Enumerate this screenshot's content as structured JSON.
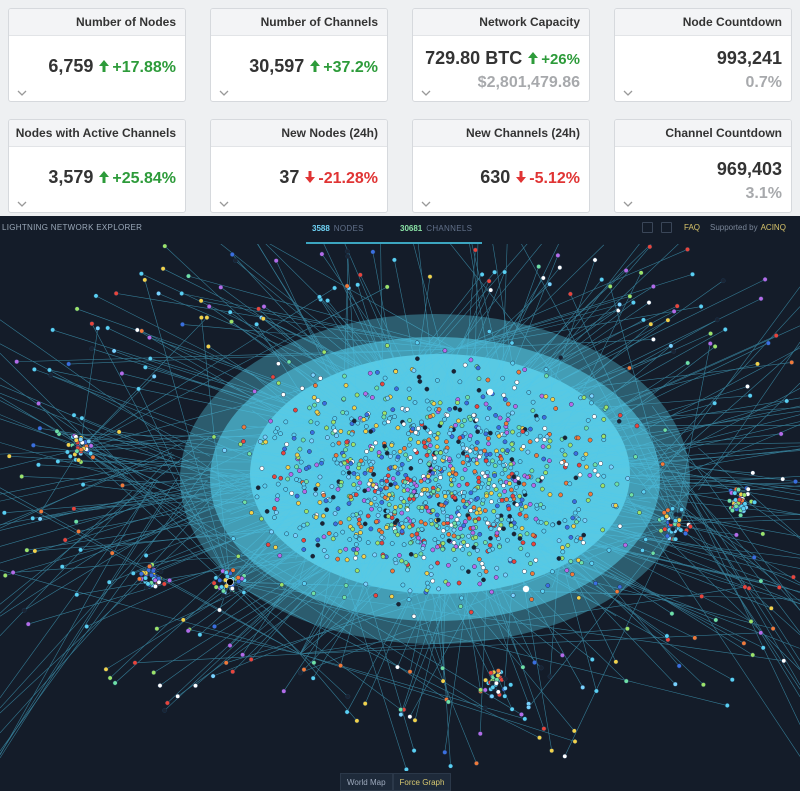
{
  "stat_cards": [
    {
      "title": "Number of Nodes",
      "value": "6,759",
      "change": "+17.88%",
      "trend": "up"
    },
    {
      "title": "Number of Channels",
      "value": "30,597",
      "change": "+37.2%",
      "trend": "up"
    },
    {
      "title": "Network Capacity",
      "value": "729.80 BTC",
      "change": "+26%",
      "trend": "up",
      "sub": "$2,801,479.86"
    },
    {
      "title": "Node Countdown",
      "value": "993,241",
      "sub": "0.7%"
    },
    {
      "title": "Nodes with Active Channels",
      "value": "3,579",
      "change": "+25.84%",
      "trend": "up"
    },
    {
      "title": "New Nodes (24h)",
      "value": "37",
      "change": "-21.28%",
      "trend": "down"
    },
    {
      "title": "New Channels (24h)",
      "value": "630",
      "change": "-5.12%",
      "trend": "down"
    },
    {
      "title": "Channel Countdown",
      "value": "969,403",
      "sub": "3.1%"
    }
  ],
  "explorer": {
    "brand": "LIGHTNING NETWORK EXPLORER",
    "nodes_count": "3588",
    "nodes_label": "NODES",
    "channels_count": "30681",
    "channels_label": "CHANNELS",
    "faq": "FAQ",
    "supported_by": "Supported by",
    "sponsor": "ACINQ",
    "tabs": [
      "World Map",
      "Force Graph"
    ]
  },
  "colors": {
    "up": "#2d9b3a",
    "down": "#e03434",
    "graph_bg": "#141c29",
    "edge": "#4fc9ec",
    "core": "#58d3f0"
  },
  "icons": [
    "arrow-up-icon",
    "arrow-down-icon",
    "chevron-down-icon",
    "save-icon",
    "fullscreen-icon"
  ]
}
